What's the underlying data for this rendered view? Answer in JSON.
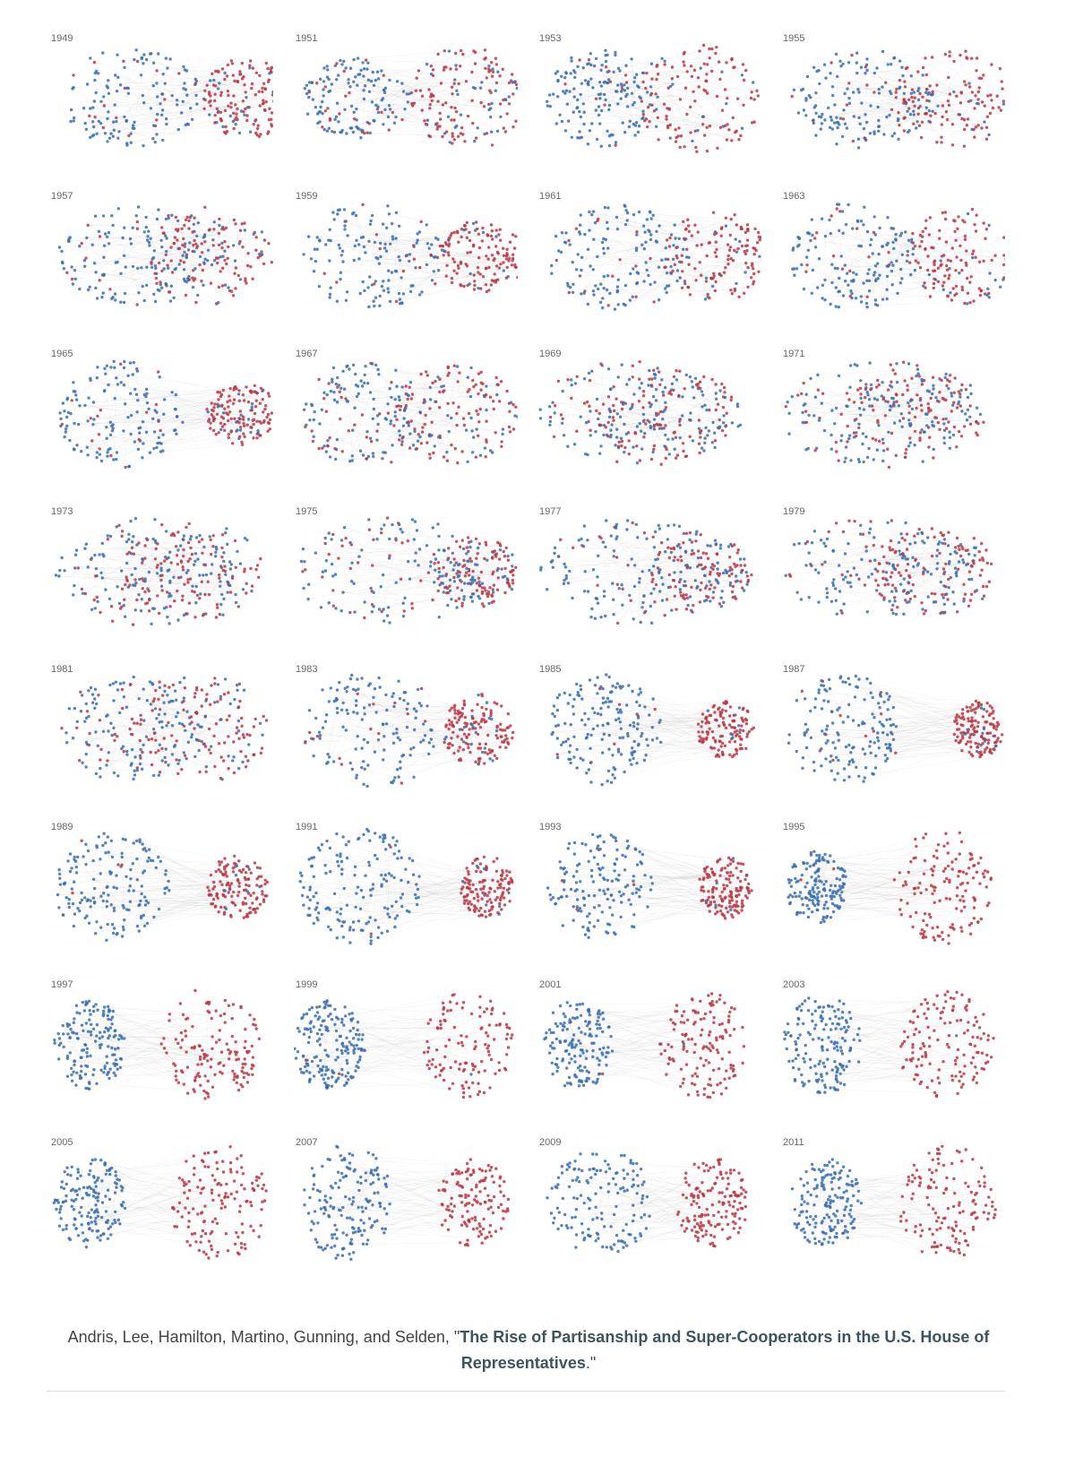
{
  "panels": [
    {
      "year": "1949"
    },
    {
      "year": "1951"
    },
    {
      "year": "1953"
    },
    {
      "year": "1955"
    },
    {
      "year": "1957"
    },
    {
      "year": "1959"
    },
    {
      "year": "1961"
    },
    {
      "year": "1963"
    },
    {
      "year": "1965"
    },
    {
      "year": "1967"
    },
    {
      "year": "1969"
    },
    {
      "year": "1971"
    },
    {
      "year": "1973"
    },
    {
      "year": "1975"
    },
    {
      "year": "1977"
    },
    {
      "year": "1979"
    },
    {
      "year": "1981"
    },
    {
      "year": "1983"
    },
    {
      "year": "1985"
    },
    {
      "year": "1987"
    },
    {
      "year": "1989"
    },
    {
      "year": "1991"
    },
    {
      "year": "1993"
    },
    {
      "year": "1995"
    },
    {
      "year": "1997"
    },
    {
      "year": "1999"
    },
    {
      "year": "2001"
    },
    {
      "year": "2003"
    },
    {
      "year": "2005"
    },
    {
      "year": "2007"
    },
    {
      "year": "2009"
    },
    {
      "year": "2011"
    }
  ],
  "caption": {
    "prefix": "Andris, Lee, Hamilton, Martino, Gunning, and Selden, \"",
    "link": "The Rise of Partisanship and Super-Cooperators in the U.S. House of Representatives",
    "suffix": ".\""
  }
}
